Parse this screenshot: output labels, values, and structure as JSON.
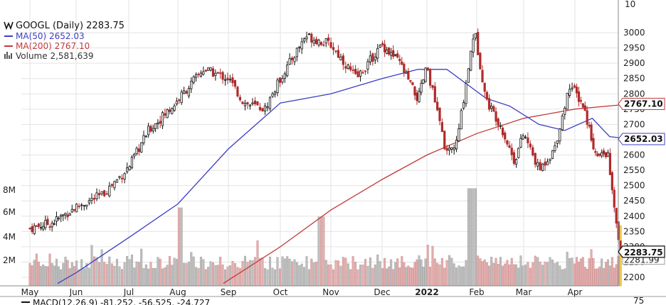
{
  "chart_data": {
    "type": "candlestick",
    "symbol": "GOOGL",
    "period": "Daily",
    "last_price": "2283.75",
    "header_label": "GOOGL (Daily) 2283.75",
    "ma50": {
      "label": "MA(50) 2652.03",
      "value": 2652.03,
      "tag": "2652.03",
      "color": "#3b3ec4"
    },
    "ma200": {
      "label": "MA(200) 2767.10",
      "value": 2767.1,
      "tag": "2767.10",
      "color": "#c23a3a"
    },
    "volume": {
      "label": "Volume 2,581,639",
      "value": 2581639
    },
    "price_tag": "2283.75",
    "overlapping_tag": "2281.99",
    "x_ticks": [
      "May",
      "Jun",
      "Jul",
      "Aug",
      "Sep",
      "Oct",
      "Nov",
      "Dec",
      "2022",
      "Feb",
      "Mar",
      "Apr"
    ],
    "y_ticks": [
      "3000",
      "2950",
      "2900",
      "2850",
      "2800",
      "2750",
      "2700",
      "2650",
      "2600",
      "2550",
      "2500",
      "2450",
      "2400",
      "2350",
      "2300",
      "2250",
      "2200"
    ],
    "top_tick": "10",
    "volume_ticks": [
      "8M",
      "6M",
      "4M",
      "2M"
    ],
    "macd_label": "MACD(12,26,9) -81.252, -56.525, -24.727",
    "macd_axis_tick": "75",
    "ylim": [
      2180,
      3050
    ],
    "volume_max": 10000000,
    "month_points": [
      {
        "m": 0,
        "close": 2360
      },
      {
        "m": 0.5,
        "close": 2380
      },
      {
        "m": 1,
        "close": 2430
      },
      {
        "m": 1.5,
        "close": 2470
      },
      {
        "m": 2,
        "close": 2560
      },
      {
        "m": 2.4,
        "close": 2680
      },
      {
        "m": 2.9,
        "close": 2760
      },
      {
        "m": 3.5,
        "close": 2880
      },
      {
        "m": 4,
        "close": 2850
      },
      {
        "m": 4.3,
        "close": 2770
      },
      {
        "m": 4.7,
        "close": 2750
      },
      {
        "m": 5,
        "close": 2850
      },
      {
        "m": 5.5,
        "close": 2990
      },
      {
        "m": 6,
        "close": 2960
      },
      {
        "m": 6.5,
        "close": 2850
      },
      {
        "m": 7,
        "close": 2960
      },
      {
        "m": 7.4,
        "close": 2900
      },
      {
        "m": 7.8,
        "close": 2780
      },
      {
        "m": 8,
        "close": 2890
      },
      {
        "m": 8.4,
        "close": 2600
      },
      {
        "m": 8.6,
        "close": 2640
      },
      {
        "m": 8.95,
        "close": 3010
      },
      {
        "m": 9.2,
        "close": 2780
      },
      {
        "m": 9.5,
        "close": 2700
      },
      {
        "m": 9.8,
        "close": 2580
      },
      {
        "m": 10,
        "close": 2670
      },
      {
        "m": 10.3,
        "close": 2550
      },
      {
        "m": 10.6,
        "close": 2620
      },
      {
        "m": 10.9,
        "close": 2830
      },
      {
        "m": 11.2,
        "close": 2760
      },
      {
        "m": 11.5,
        "close": 2590
      },
      {
        "m": 11.75,
        "close": 2610
      },
      {
        "m": 11.95,
        "close": 2370
      },
      {
        "m": 12.05,
        "close": 2283
      }
    ],
    "ma50_points": [
      {
        "m": 0.6,
        "v": 2180
      },
      {
        "m": 1,
        "v": 2215
      },
      {
        "m": 2,
        "v": 2330
      },
      {
        "m": 3,
        "v": 2440
      },
      {
        "m": 4,
        "v": 2620
      },
      {
        "m": 5,
        "v": 2770
      },
      {
        "m": 6,
        "v": 2800
      },
      {
        "m": 7,
        "v": 2850
      },
      {
        "m": 7.8,
        "v": 2880
      },
      {
        "m": 8.4,
        "v": 2880
      },
      {
        "m": 9.2,
        "v": 2785
      },
      {
        "m": 9.7,
        "v": 2760
      },
      {
        "m": 10.3,
        "v": 2700
      },
      {
        "m": 10.8,
        "v": 2680
      },
      {
        "m": 11.4,
        "v": 2720
      },
      {
        "m": 11.8,
        "v": 2660
      },
      {
        "m": 12.3,
        "v": 2652
      }
    ],
    "ma200_points": [
      {
        "m": 3.9,
        "v": 2180
      },
      {
        "m": 5,
        "v": 2300
      },
      {
        "m": 6,
        "v": 2420
      },
      {
        "m": 7,
        "v": 2520
      },
      {
        "m": 8,
        "v": 2600
      },
      {
        "m": 9,
        "v": 2670
      },
      {
        "m": 10,
        "v": 2720
      },
      {
        "m": 11,
        "v": 2750
      },
      {
        "m": 12.3,
        "v": 2767
      }
    ]
  }
}
